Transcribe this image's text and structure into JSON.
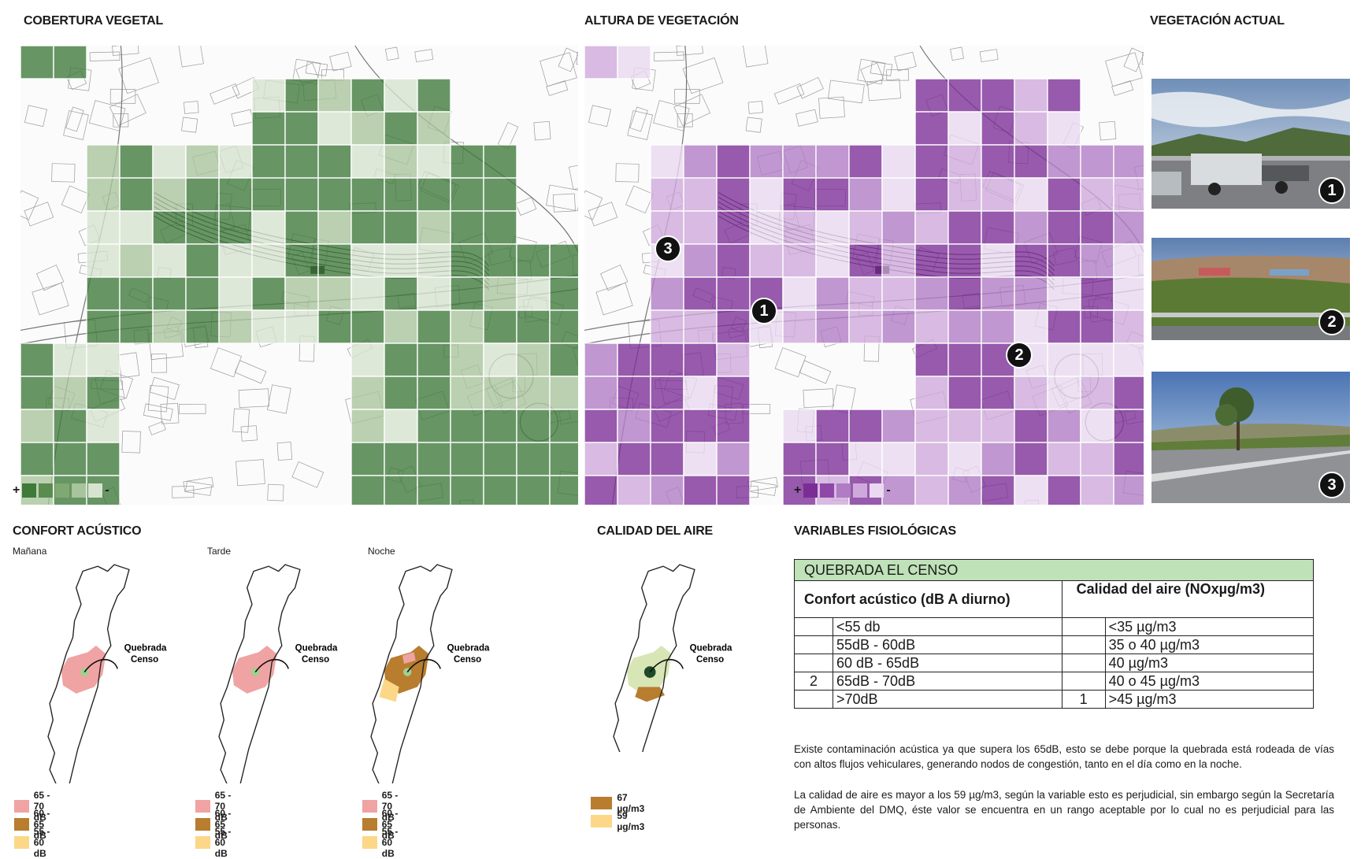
{
  "sections": {
    "cobertura": {
      "title": "COBERTURA VEGETAL"
    },
    "altura": {
      "title": "ALTURA DE VEGETACIÓN"
    },
    "vegetacion_actual": {
      "title": "VEGETACIÓN ACTUAL"
    },
    "confort": {
      "title": "CONFORT ACÚSTICO",
      "periods": [
        "Mañana",
        "Tarde",
        "Noche"
      ]
    },
    "aire": {
      "title": "CALIDAD DEL AIRE"
    },
    "variables": {
      "title": "VARIABLES FISIOLÓGICAS"
    }
  },
  "map_legend": {
    "plus": "+",
    "minus": "-"
  },
  "green_scale": [
    "#3e7a3a",
    "#5a8c50",
    "#7fa872",
    "#a8c49c",
    "#d6e3cf"
  ],
  "purple_scale": [
    "#7b2d96",
    "#9048a8",
    "#b07cc4",
    "#cfa9dc",
    "#ead9f0"
  ],
  "markers": {
    "m1": "1",
    "m2": "2",
    "m3": "3"
  },
  "photos": [
    {
      "label": "1"
    },
    {
      "label": "2"
    },
    {
      "label": "3"
    }
  ],
  "quebrada_label": [
    "Quebrada",
    "Censo"
  ],
  "acoustic_legend": [
    {
      "label": "65 - 70 dB",
      "color": "#f0a3a3"
    },
    {
      "label": "60 - 65 dB",
      "color": "#b87d2e"
    },
    {
      "label": "55 - 60 dB",
      "color": "#fbd787"
    }
  ],
  "air_legend": [
    {
      "label": "67  µg/m3",
      "color": "#b87d2e"
    },
    {
      "label": "59  µg/m3",
      "color": "#fbd787"
    }
  ],
  "table": {
    "title": "QUEBRADA EL CENSO",
    "header_left": "Confort acústico (dB A diurno)",
    "header_right": "Calidad del aire (NOxµg/m3)",
    "rows": [
      {
        "mark_left": "",
        "left": "<55 db",
        "mark_right": "",
        "right": "<35 µg/m3"
      },
      {
        "mark_left": "",
        "left": "55dB - 60dB",
        "mark_right": "",
        "right": "35 o 40  µg/m3"
      },
      {
        "mark_left": "",
        "left": "60 dB - 65dB",
        "mark_right": "",
        "right": "40  µg/m3"
      },
      {
        "mark_left": "2",
        "left": "65dB - 70dB",
        "mark_right": "",
        "right": "40 o 45  µg/m3"
      },
      {
        "mark_left": "",
        "left": ">70dB",
        "mark_right": "1",
        "right": ">45  µg/m3"
      }
    ]
  },
  "paragraphs": {
    "p1": "Existe contaminación acústica ya que supera los 65dB, esto se debe porque la quebrada está rodeada de vías con altos flujos vehiculares, generando nodos de congestión, tanto en el día como en la noche.",
    "p2": "La calidad de aire es mayor a los 59 µg/m3, según la variable esto es perjudicial, sin embargo según la Secretaría de Ambiente del DMQ, éste valor se encuentra en un rango aceptable por lo cual no es perjudicial para las personas."
  }
}
